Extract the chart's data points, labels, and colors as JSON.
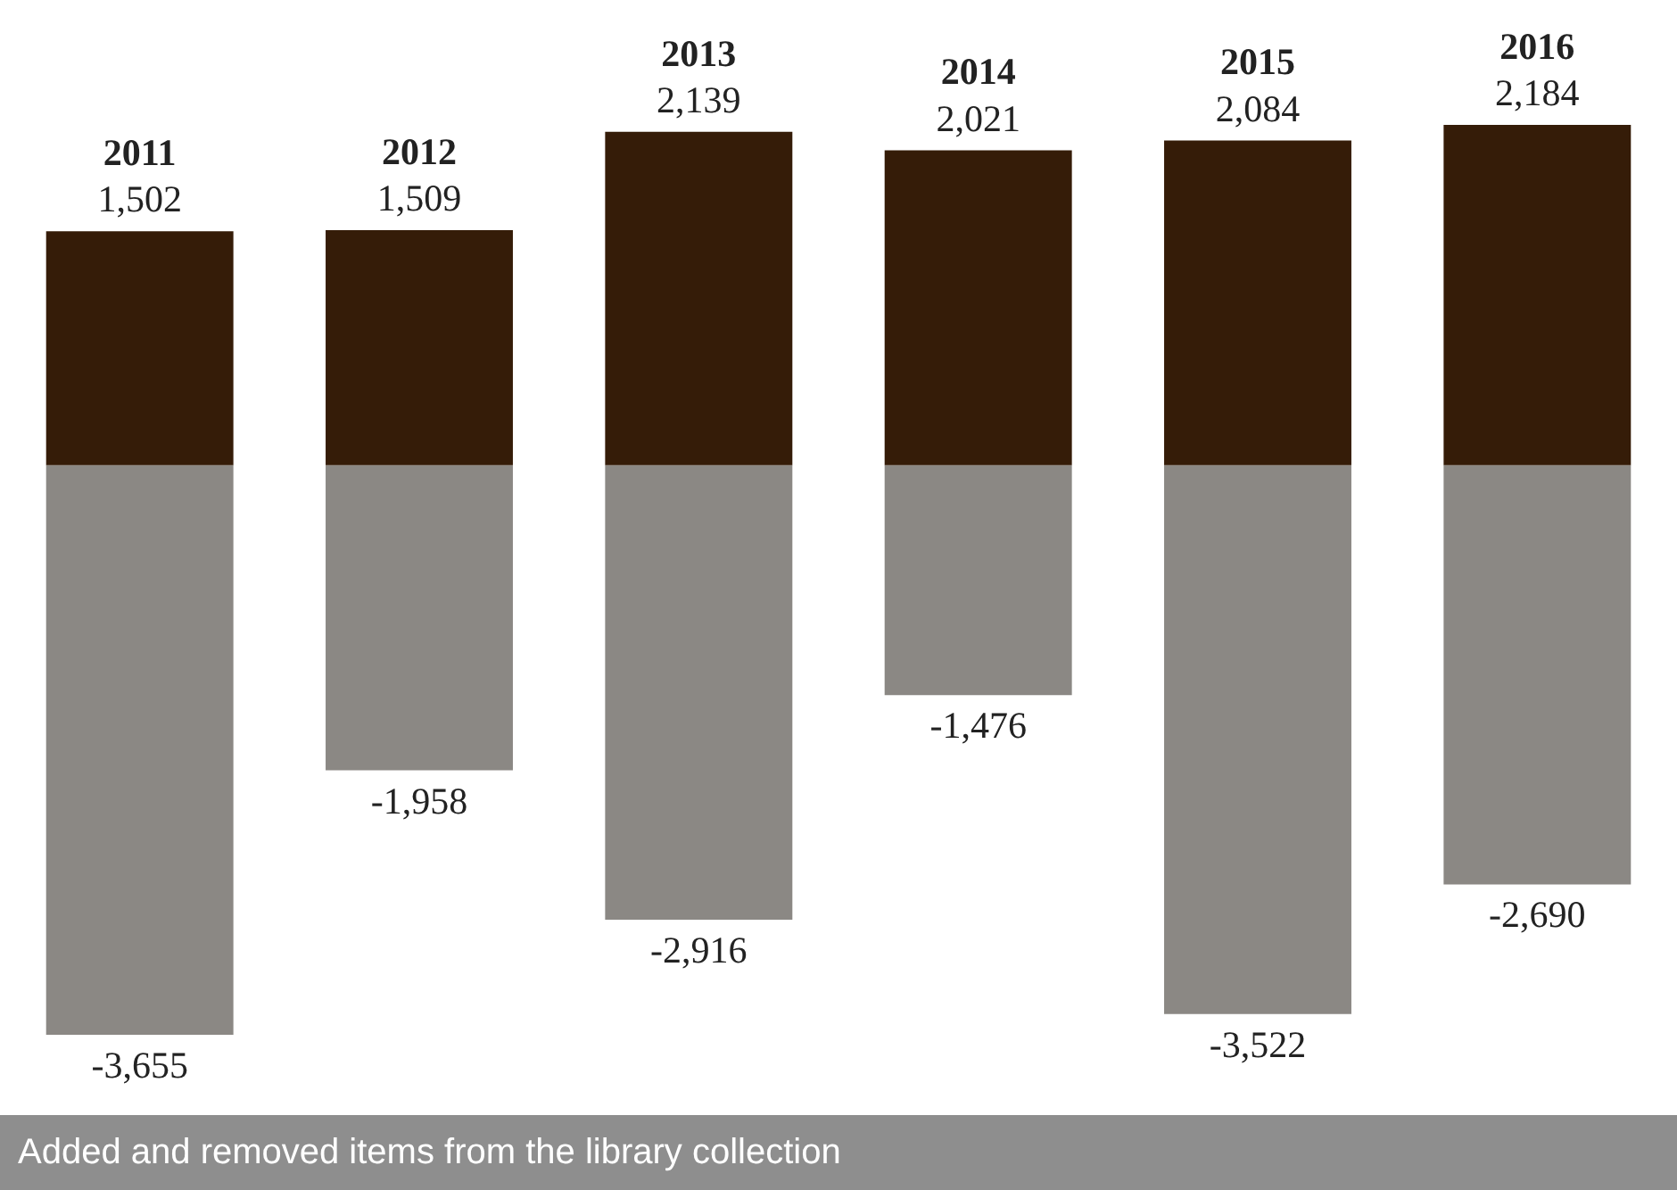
{
  "chart_data": {
    "type": "bar",
    "stacked": true,
    "categories": [
      "2011",
      "2012",
      "2013",
      "2014",
      "2015",
      "2016"
    ],
    "series": [
      {
        "color": "#351c08",
        "values": [
          1502,
          1509,
          2139,
          2021,
          2084,
          2184
        ],
        "value_labels": [
          "1,502",
          "1,509",
          "2,139",
          "2,021",
          "2,084",
          "2,184"
        ]
      },
      {
        "color": "#8b8884",
        "values": [
          -3655,
          -1958,
          -2916,
          -1476,
          -3522,
          -2690
        ],
        "value_labels": [
          "-3,655",
          "-1,958",
          "-2,916",
          "-1,476",
          "-3,522",
          "-2,690"
        ]
      }
    ],
    "legend": false,
    "annotations": [
      "Added and removed items from the library collection"
    ]
  }
}
